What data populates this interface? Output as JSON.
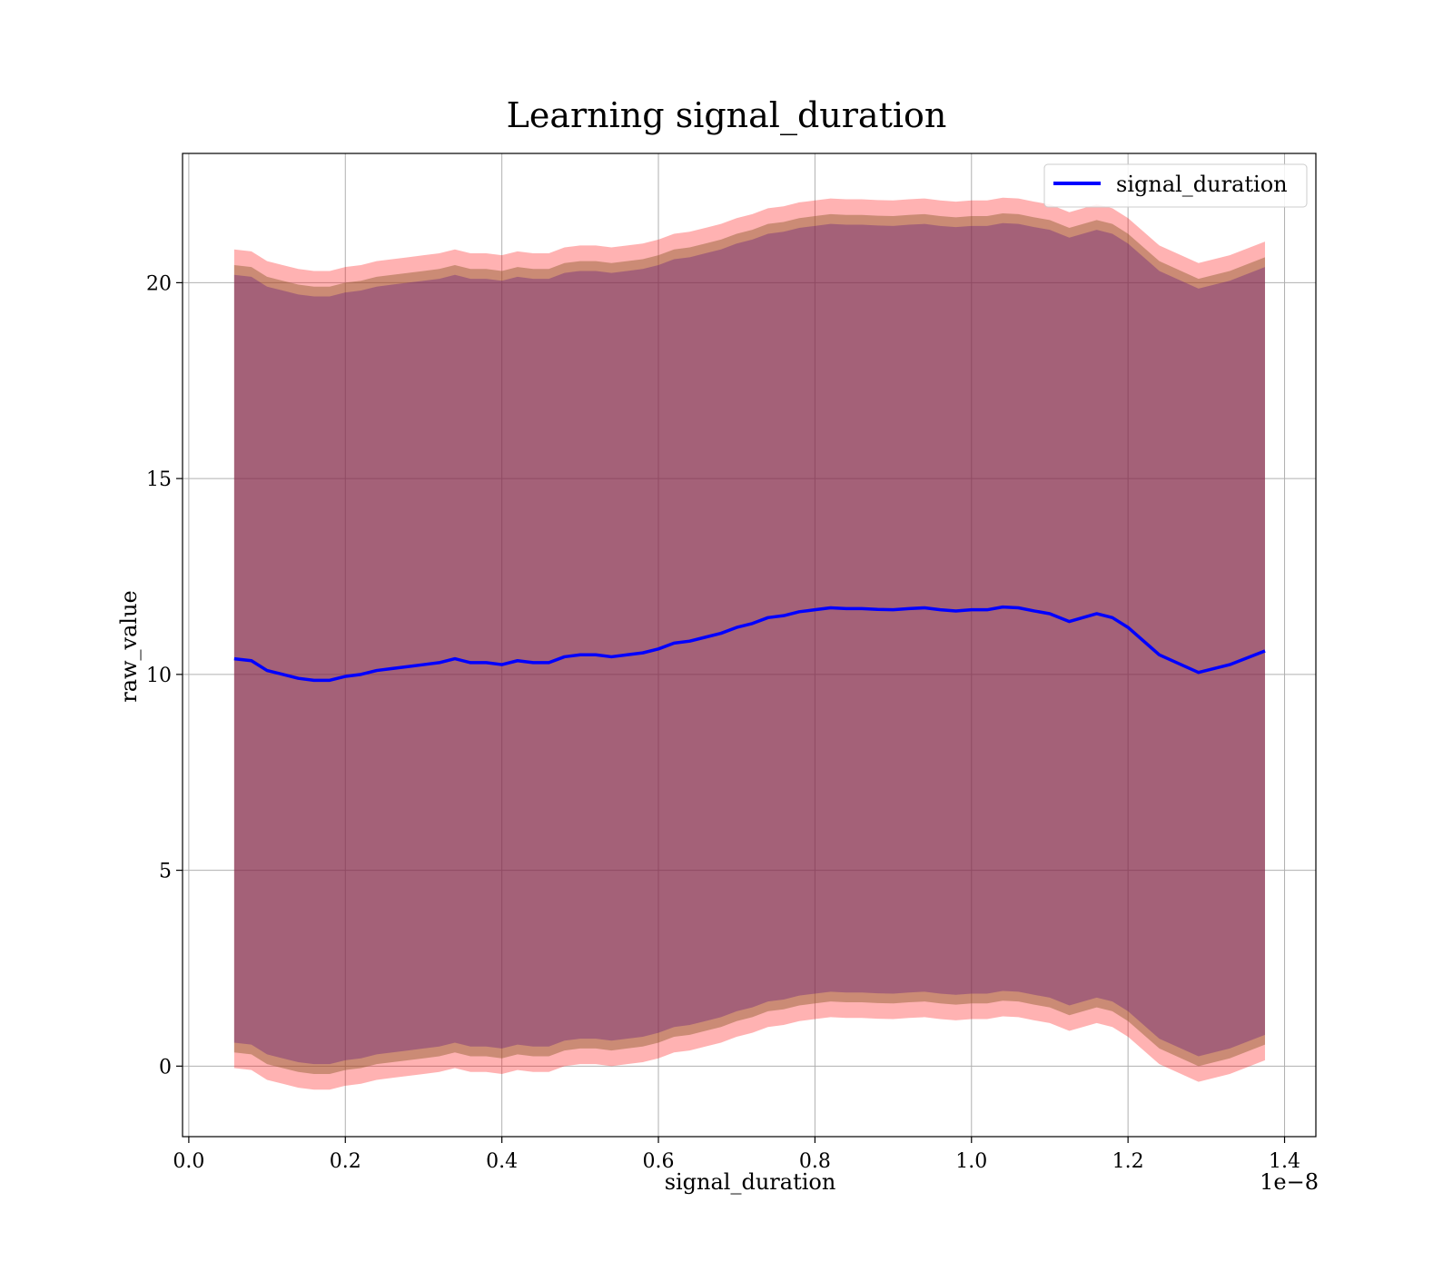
{
  "chart_data": {
    "type": "line",
    "title": "Learning signal_duration",
    "xlabel": "signal_duration",
    "ylabel": "raw_value",
    "x_offset_label": "1e−8",
    "xlim": [
      -0.008,
      1.44
    ],
    "ylim": [
      -1.8,
      23.3
    ],
    "x_unit_scale": 1e-08,
    "xticks": [
      0.0,
      0.2,
      0.4,
      0.6,
      0.8,
      1.0,
      1.2,
      1.4
    ],
    "xtick_labels": [
      "0.0",
      "0.2",
      "0.4",
      "0.6",
      "0.8",
      "1.0",
      "1.2",
      "1.4"
    ],
    "yticks": [
      0,
      5,
      10,
      15,
      20
    ],
    "ytick_labels": [
      "0",
      "5",
      "10",
      "15",
      "20"
    ],
    "grid": true,
    "legend_position": "top-right",
    "colors": {
      "line": "#0000ff",
      "band_outer": "#ff0000",
      "band_middle": "#8b5a2b",
      "band_inner": "#4b0082",
      "grid": "#b0b0b0"
    },
    "x": [
      0.058,
      0.08,
      0.1,
      0.12,
      0.14,
      0.16,
      0.18,
      0.2,
      0.22,
      0.24,
      0.26,
      0.28,
      0.3,
      0.32,
      0.34,
      0.36,
      0.38,
      0.4,
      0.42,
      0.44,
      0.46,
      0.48,
      0.5,
      0.52,
      0.54,
      0.56,
      0.58,
      0.6,
      0.62,
      0.64,
      0.66,
      0.68,
      0.7,
      0.72,
      0.74,
      0.76,
      0.78,
      0.8,
      0.82,
      0.84,
      0.86,
      0.88,
      0.9,
      0.92,
      0.94,
      0.96,
      0.98,
      1.0,
      1.02,
      1.04,
      1.06,
      1.08,
      1.1,
      1.125,
      1.16,
      1.18,
      1.2,
      1.24,
      1.29,
      1.33,
      1.375
    ],
    "series": [
      {
        "name": "signal_duration",
        "values": [
          10.4,
          10.35,
          10.1,
          10.0,
          9.9,
          9.85,
          9.85,
          9.95,
          10.0,
          10.1,
          10.15,
          10.2,
          10.25,
          10.3,
          10.4,
          10.3,
          10.3,
          10.25,
          10.35,
          10.3,
          10.3,
          10.45,
          10.5,
          10.5,
          10.45,
          10.5,
          10.55,
          10.65,
          10.8,
          10.85,
          10.95,
          11.05,
          11.2,
          11.3,
          11.45,
          11.5,
          11.6,
          11.65,
          11.7,
          11.68,
          11.68,
          11.66,
          11.65,
          11.68,
          11.7,
          11.65,
          11.62,
          11.65,
          11.65,
          11.72,
          11.7,
          11.62,
          11.55,
          11.35,
          11.55,
          11.45,
          11.2,
          10.5,
          10.05,
          10.25,
          10.6
        ]
      }
    ],
    "bands": [
      {
        "level": "outer",
        "half_width": 10.45
      },
      {
        "level": "middle",
        "half_width": 10.05
      },
      {
        "level": "inner",
        "half_width": 9.8
      }
    ],
    "legend": [
      {
        "label": "signal_duration"
      }
    ]
  }
}
